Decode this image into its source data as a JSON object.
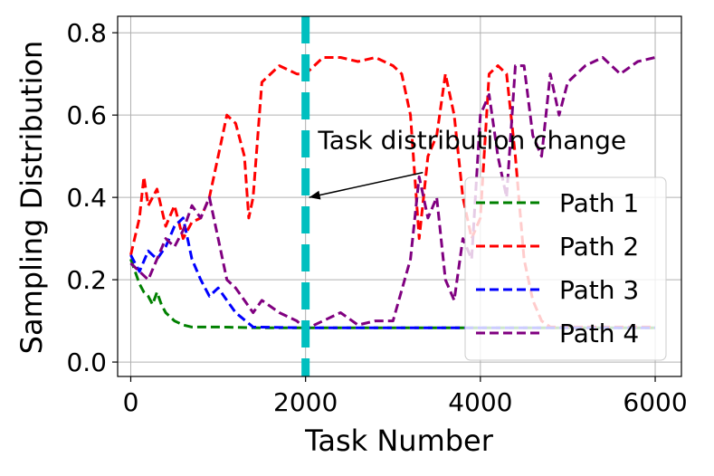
{
  "chart_data": {
    "type": "line",
    "xlabel": "Task Number",
    "ylabel": "Sampling Distribution",
    "xlim": [
      -150,
      6300
    ],
    "ylim": [
      -0.035,
      0.84
    ],
    "xticks": [
      "0",
      "2000",
      "4000",
      "6000"
    ],
    "yticks": [
      "0.0",
      "0.2",
      "0.4",
      "0.6",
      "0.8"
    ],
    "grid": true,
    "legend_position": "lower-right",
    "vline": {
      "x": 2000,
      "color": "#00bfbf",
      "style": "dashed"
    },
    "annotation": {
      "text": "Task distribution change",
      "x": 2000,
      "y": 0.4,
      "text_x": 2100,
      "text_y": 0.5
    },
    "series": [
      {
        "name": "Path 1",
        "color": "#008000",
        "style": "dashed",
        "x": [
          0,
          50,
          100,
          150,
          200,
          250,
          300,
          350,
          400,
          500,
          600,
          700,
          800,
          1000,
          1500,
          2000,
          3000,
          4000,
          5000,
          6000
        ],
        "y": [
          0.25,
          0.22,
          0.19,
          0.17,
          0.16,
          0.14,
          0.17,
          0.14,
          0.12,
          0.1,
          0.09,
          0.085,
          0.085,
          0.085,
          0.083,
          0.083,
          0.083,
          0.083,
          0.083,
          0.083
        ]
      },
      {
        "name": "Path 2",
        "color": "#ff0000",
        "style": "dashed",
        "x": [
          0,
          100,
          150,
          200,
          300,
          400,
          500,
          600,
          700,
          800,
          900,
          1000,
          1100,
          1200,
          1300,
          1350,
          1400,
          1500,
          1700,
          1900,
          2000,
          2200,
          2400,
          2600,
          2800,
          3000,
          3100,
          3200,
          3300,
          3400,
          3500,
          3600,
          3700,
          3800,
          3900,
          4000,
          4100,
          4200,
          4300,
          4400,
          4500,
          4600,
          4700,
          4800,
          5000,
          5500,
          6000
        ],
        "y": [
          0.26,
          0.35,
          0.45,
          0.38,
          0.42,
          0.33,
          0.38,
          0.3,
          0.34,
          0.35,
          0.4,
          0.5,
          0.6,
          0.58,
          0.5,
          0.35,
          0.4,
          0.68,
          0.72,
          0.7,
          0.7,
          0.74,
          0.74,
          0.73,
          0.74,
          0.72,
          0.7,
          0.6,
          0.3,
          0.5,
          0.55,
          0.7,
          0.6,
          0.4,
          0.3,
          0.35,
          0.7,
          0.72,
          0.7,
          0.5,
          0.25,
          0.15,
          0.1,
          0.085,
          0.085,
          0.085,
          0.085
        ]
      },
      {
        "name": "Path 3",
        "color": "#0000ff",
        "style": "dashed",
        "x": [
          0,
          100,
          200,
          300,
          400,
          500,
          600,
          700,
          800,
          900,
          1000,
          1100,
          1200,
          1400,
          2000,
          3000,
          4000,
          5000,
          6000
        ],
        "y": [
          0.26,
          0.22,
          0.27,
          0.25,
          0.28,
          0.33,
          0.35,
          0.25,
          0.2,
          0.16,
          0.18,
          0.15,
          0.12,
          0.085,
          0.083,
          0.083,
          0.083,
          0.083,
          0.083
        ]
      },
      {
        "name": "Path 4",
        "color": "#800080",
        "style": "dashed",
        "x": [
          0,
          100,
          200,
          300,
          400,
          500,
          600,
          700,
          800,
          900,
          1000,
          1100,
          1200,
          1300,
          1400,
          1500,
          1700,
          1900,
          2000,
          2200,
          2400,
          2600,
          2800,
          3000,
          3200,
          3300,
          3400,
          3500,
          3600,
          3700,
          3800,
          3900,
          4000,
          4100,
          4200,
          4300,
          4400,
          4500,
          4600,
          4700,
          4800,
          4900,
          5000,
          5100,
          5200,
          5400,
          5600,
          5800,
          6000
        ],
        "y": [
          0.24,
          0.22,
          0.2,
          0.25,
          0.3,
          0.28,
          0.32,
          0.38,
          0.35,
          0.4,
          0.3,
          0.2,
          0.18,
          0.15,
          0.12,
          0.15,
          0.12,
          0.1,
          0.08,
          0.1,
          0.12,
          0.09,
          0.1,
          0.1,
          0.25,
          0.45,
          0.35,
          0.4,
          0.2,
          0.15,
          0.3,
          0.25,
          0.6,
          0.65,
          0.5,
          0.4,
          0.72,
          0.72,
          0.55,
          0.5,
          0.7,
          0.6,
          0.68,
          0.7,
          0.72,
          0.74,
          0.7,
          0.73,
          0.74
        ]
      }
    ]
  }
}
